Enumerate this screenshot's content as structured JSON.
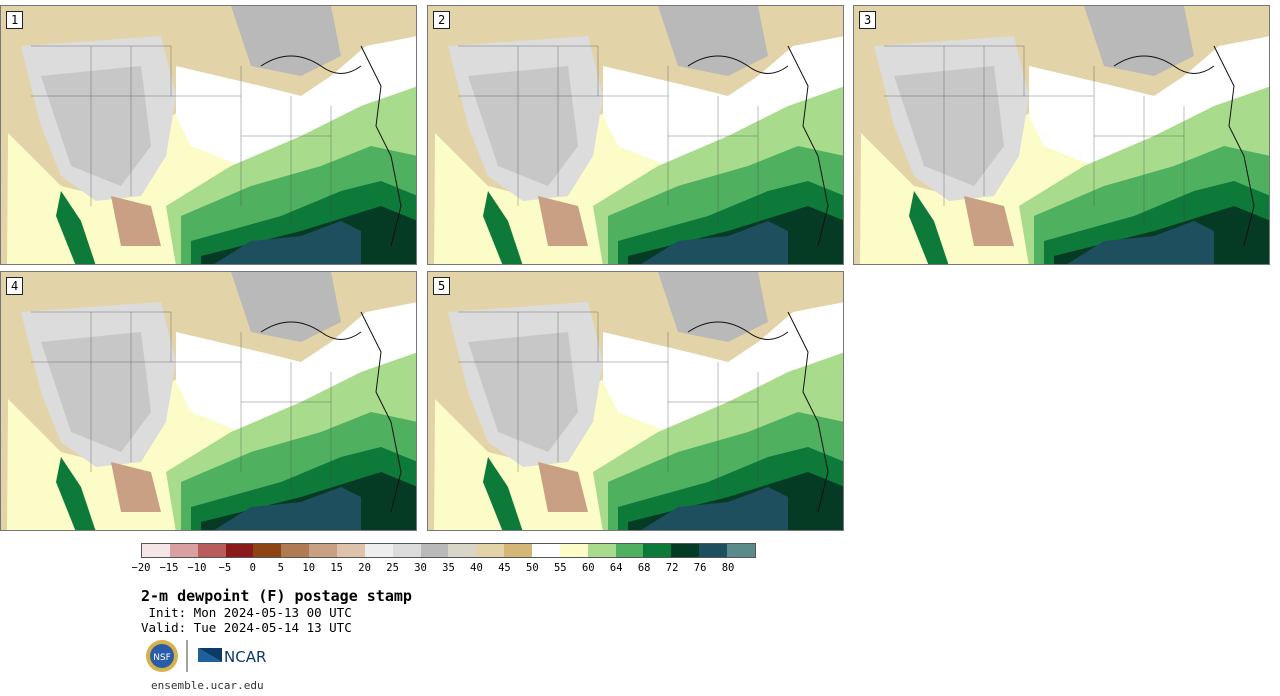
{
  "panels": [
    {
      "label": "1"
    },
    {
      "label": "2"
    },
    {
      "label": "3"
    },
    {
      "label": "4"
    },
    {
      "label": "5"
    }
  ],
  "colorbar": {
    "colors": [
      "#f4e6e6",
      "#d9a0a0",
      "#b85c5c",
      "#8b1a1a",
      "#8c4513",
      "#b07a52",
      "#c9a083",
      "#ddc3ac",
      "#eeeeee",
      "#dcdcdc",
      "#b9b9b9",
      "#d9d5c8",
      "#e3d3a8",
      "#d4b677",
      "#ffffff",
      "#fbfcc8",
      "#a8dc8c",
      "#4fb060",
      "#0d7a3a",
      "#053b24",
      "#1e4f5e",
      "#5b8a8a"
    ],
    "ticks": [
      "−20",
      "−15",
      "−10",
      "−5",
      "0",
      "5",
      "10",
      "15",
      "20",
      "25",
      "30",
      "35",
      "40",
      "45",
      "50",
      "55",
      "60",
      "64",
      "68",
      "72",
      "76",
      "80"
    ]
  },
  "footer": {
    "title": "2-m dewpoint (F) postage stamp",
    "init": " Init: Mon 2024-05-13 00 UTC",
    "valid": "Valid: Tue 2024-05-14 13 UTC",
    "ncar": "NCAR",
    "nsf": "NSF",
    "url": "ensemble.ucar.edu"
  }
}
